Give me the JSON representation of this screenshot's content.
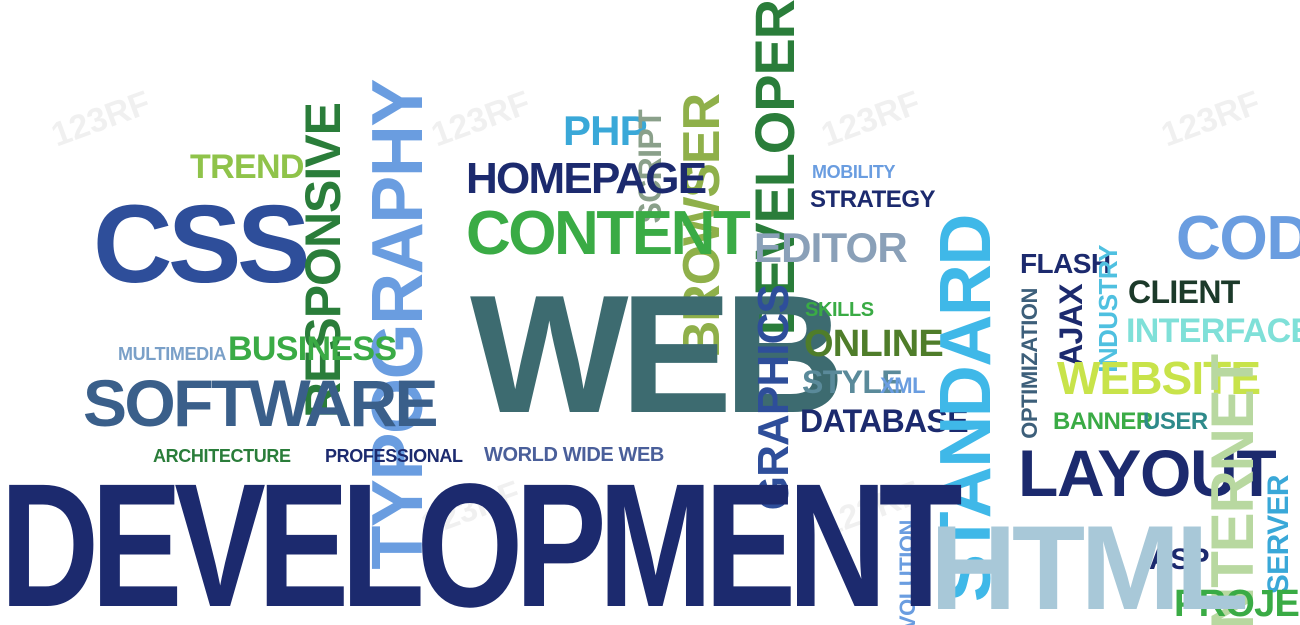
{
  "words": {
    "development": "DEVELOPMENT",
    "web": "WEB",
    "html": "HTML",
    "css": "CSS",
    "software": "SOFTWARE",
    "typography": "TYPOGRAPHY",
    "responsive": "RESPONSIVE",
    "trend": "TREND",
    "business": "BUSINESS",
    "multimedia": "MULTIMEDIA",
    "architecture": "ARCHITECTURE",
    "professional": "PROFESSIONAL",
    "world_wide_web": "WORLD WIDE WEB",
    "homepage": "HOMEPAGE",
    "content": "CONTENT",
    "php": "PHP",
    "script": "SCRIPT",
    "browser": "BROWSER",
    "developer": "DEVELOPER",
    "mobility": "MOBILITY",
    "strategy": "STRATEGY",
    "editor": "EDITOR",
    "graphics": "GRAPHICS",
    "skills": "SKILLS",
    "online": "ONLINE",
    "style": "STYLE",
    "xml": "XML",
    "database": "DATABASE",
    "standard": "STANDARD",
    "evolution": "EVOLUTION",
    "flash": "FLASH",
    "optimization": "OPTIMIZATION",
    "ajax": "AJAX",
    "industry": "INDUSTRY",
    "client": "CLIENT",
    "interface": "INTERFACE",
    "website": "WEBSITE",
    "banner": "BANNER",
    "user": "USER",
    "layout": "LAYOUT",
    "code": "CODE",
    "internet": "INTERNET",
    "server": "SERVER",
    "asp": "ASP",
    "project": "PROJECT"
  },
  "watermark": "123RF",
  "colors": {
    "navy": "#1c2a6e",
    "blue": "#2e4e9a",
    "slate": "#3d6b70",
    "teal": "#2e8a8a",
    "green": "#3aab45",
    "darkgreen": "#2a7d3a",
    "lightgreen": "#8fc34a",
    "lime": "#c8e34a",
    "sky": "#3aa8d8",
    "lightblue": "#6a9de0",
    "cyan": "#4fcfe0",
    "olive": "#4f7d2a"
  }
}
